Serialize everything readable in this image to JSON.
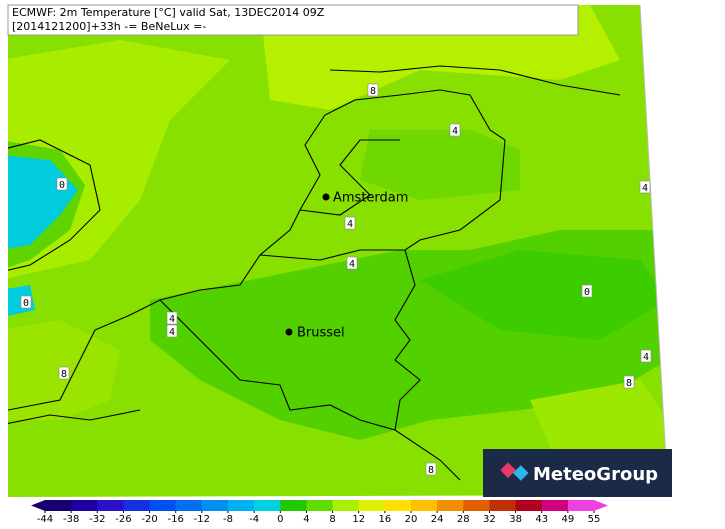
{
  "header": {
    "line1": "ECMWF: 2m Temperature [°C] valid Sat, 13DEC2014 09Z",
    "line2": "[2014121200]+33h -= BeNeLux =-"
  },
  "cities": [
    "Amsterdam",
    "Brussel"
  ],
  "contour_labels": [
    8,
    4,
    0,
    4,
    4,
    4,
    0,
    0,
    4,
    4,
    4,
    8,
    8,
    8
  ],
  "logo": "MeteoGroup",
  "colorbar": {
    "ticks": [
      -44,
      -38,
      -32,
      -26,
      -20,
      -16,
      -12,
      -8,
      -4,
      0,
      4,
      8,
      12,
      16,
      20,
      24,
      28,
      32,
      38,
      43,
      49,
      55
    ],
    "colors": [
      "#14006e",
      "#1e00a0",
      "#2a10c8",
      "#1530e0",
      "#0050f0",
      "#0070f0",
      "#0090f0",
      "#00b0f0",
      "#00d0e0",
      "#20c800",
      "#60dc00",
      "#a8f000",
      "#e0f000",
      "#ffe000",
      "#ffc000",
      "#f09000",
      "#e06000",
      "#c03000",
      "#b00020",
      "#d00080",
      "#f040e0"
    ]
  }
}
